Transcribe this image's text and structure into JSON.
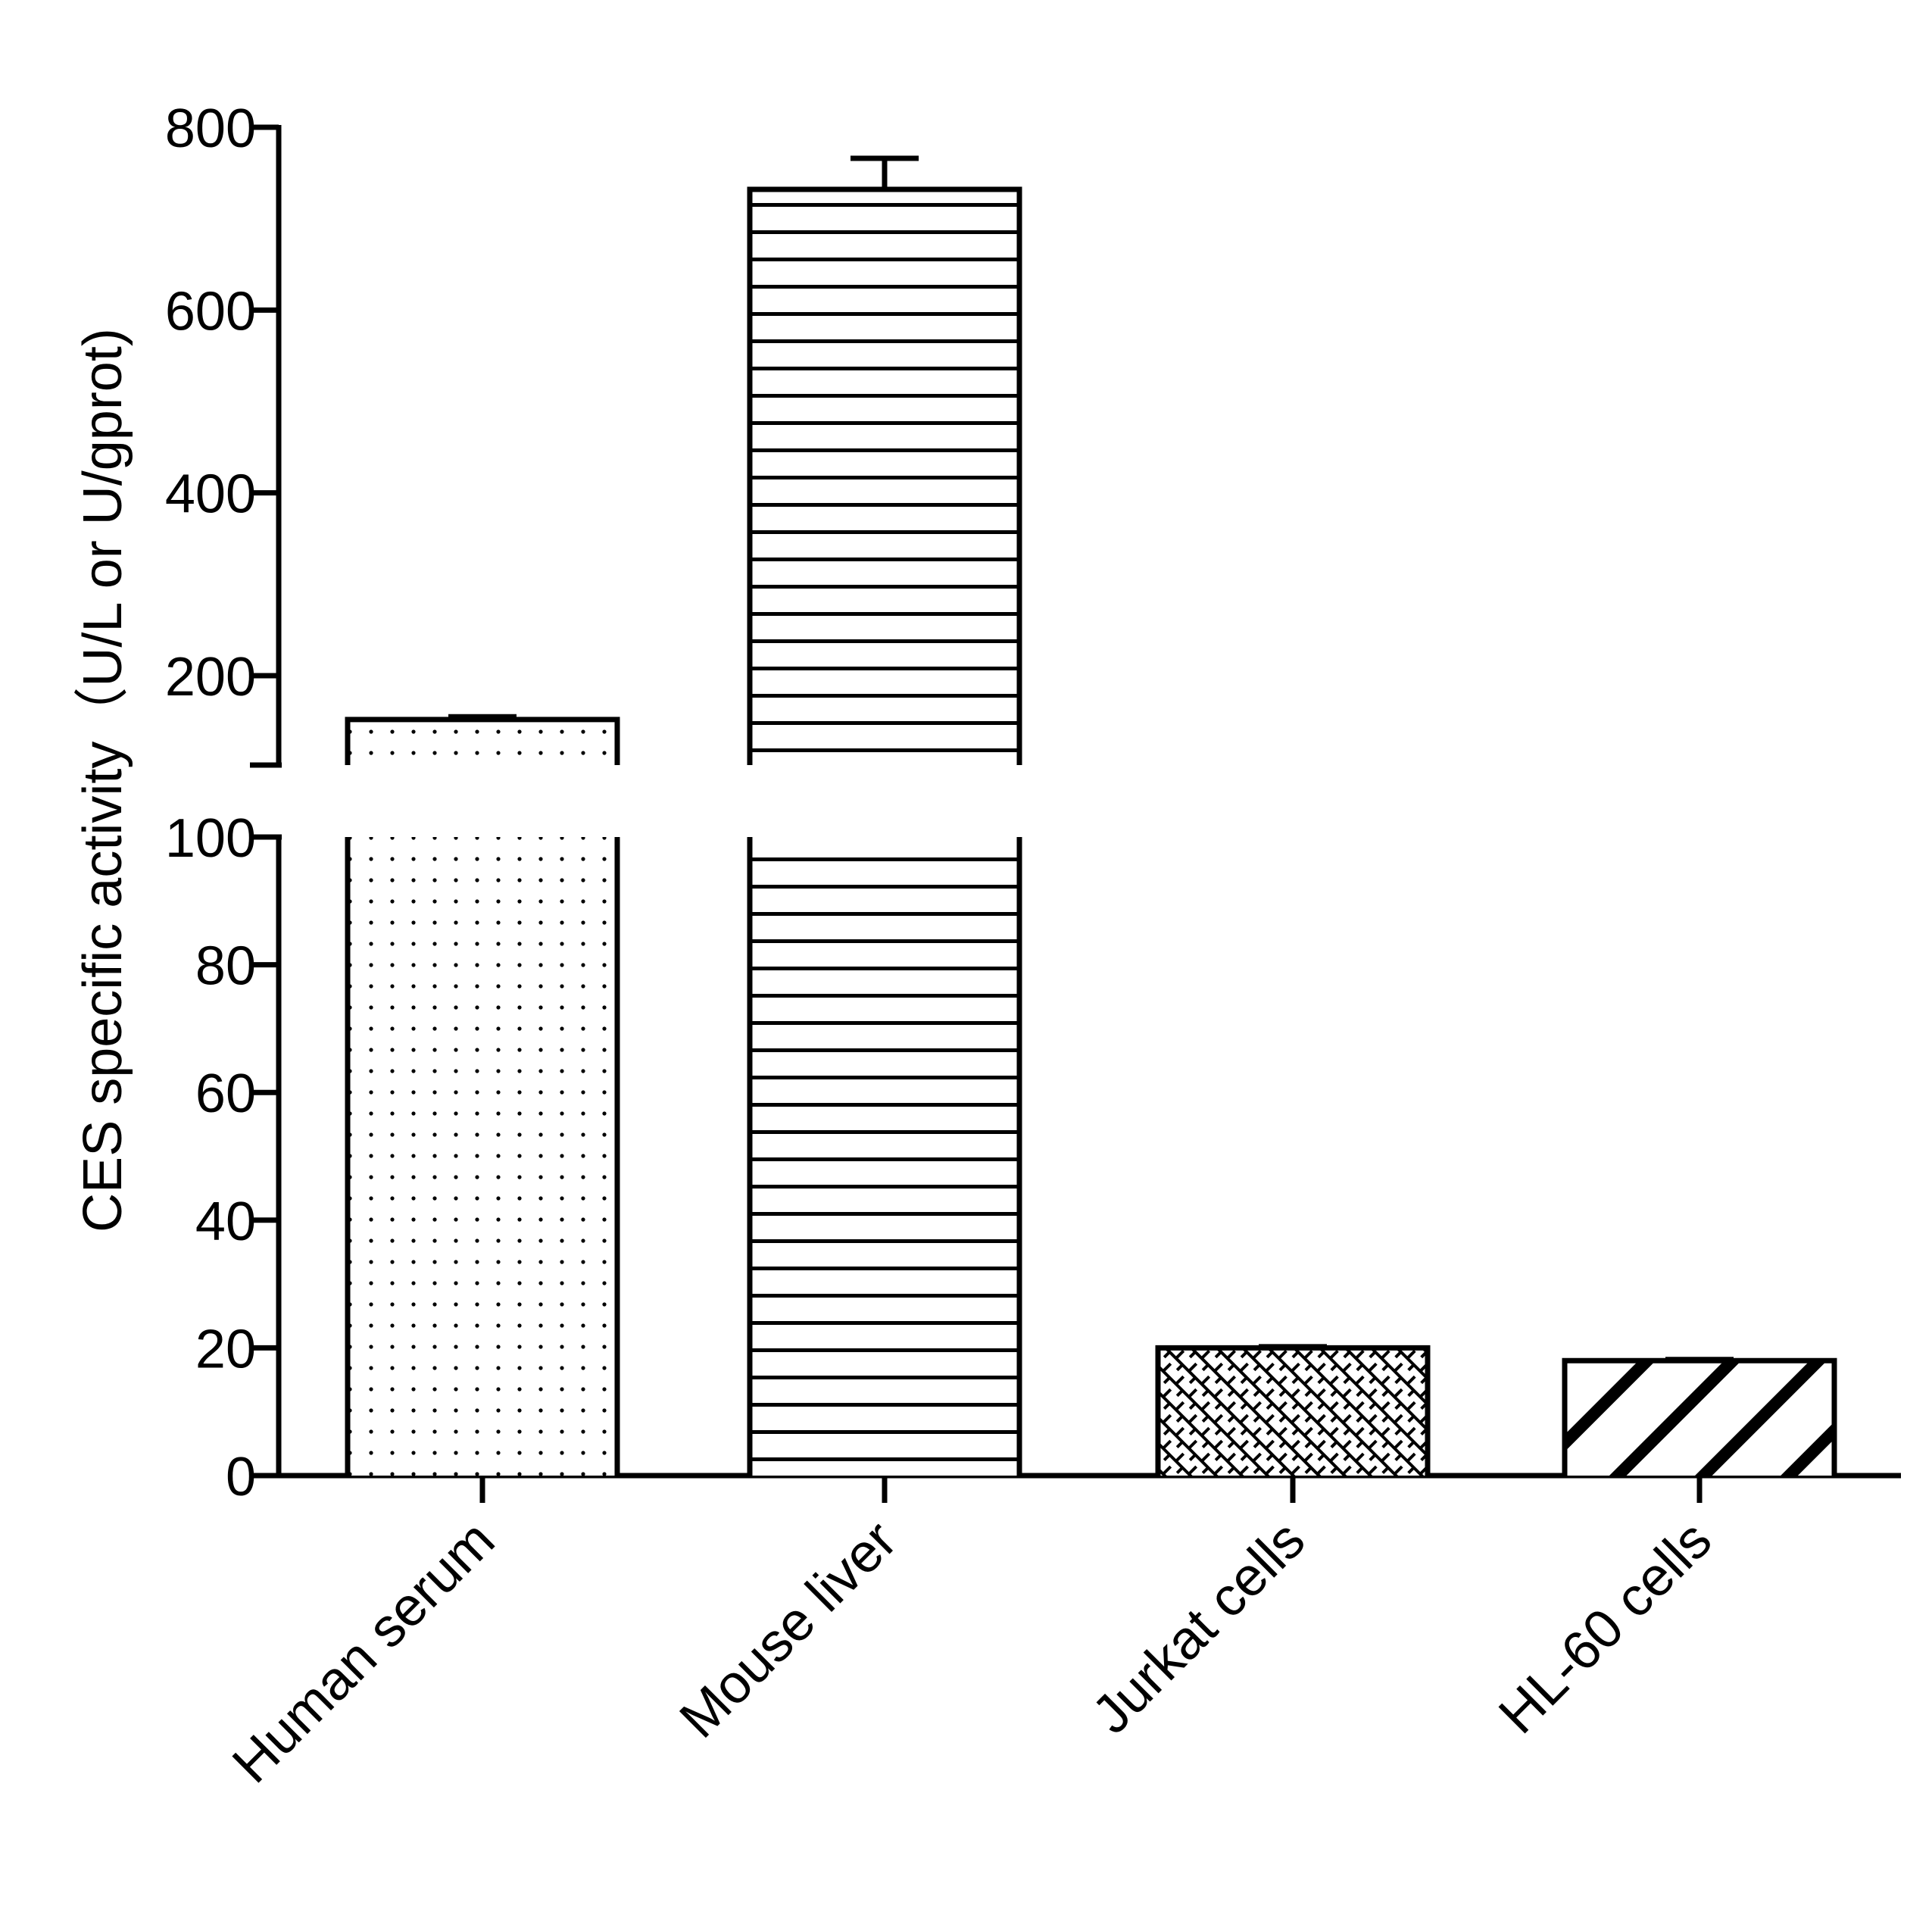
{
  "chart_data": {
    "type": "bar",
    "ylabel": "CES specific activity（U/L or U/gprot)",
    "y_axis_break": {
      "lower_segment": [
        0,
        100
      ],
      "upper_segment": [
        100,
        800
      ]
    },
    "lower_ticks": [
      "0",
      "20",
      "40",
      "60",
      "80",
      "100"
    ],
    "upper_ticks": [
      "200",
      "400",
      "600",
      "800"
    ],
    "categories": [
      "Human serum",
      "Mouse liver",
      "Jurkat cells",
      "HL-60 cells"
    ],
    "values": [
      152,
      732,
      20,
      18
    ],
    "errors": [
      3,
      34,
      0.3,
      0.3
    ],
    "patterns": [
      "dots",
      "horizontal-lines",
      "crosshatch",
      "wide-diagonal"
    ],
    "colors": {
      "stroke": "#000000",
      "fill": "#ffffff"
    }
  }
}
